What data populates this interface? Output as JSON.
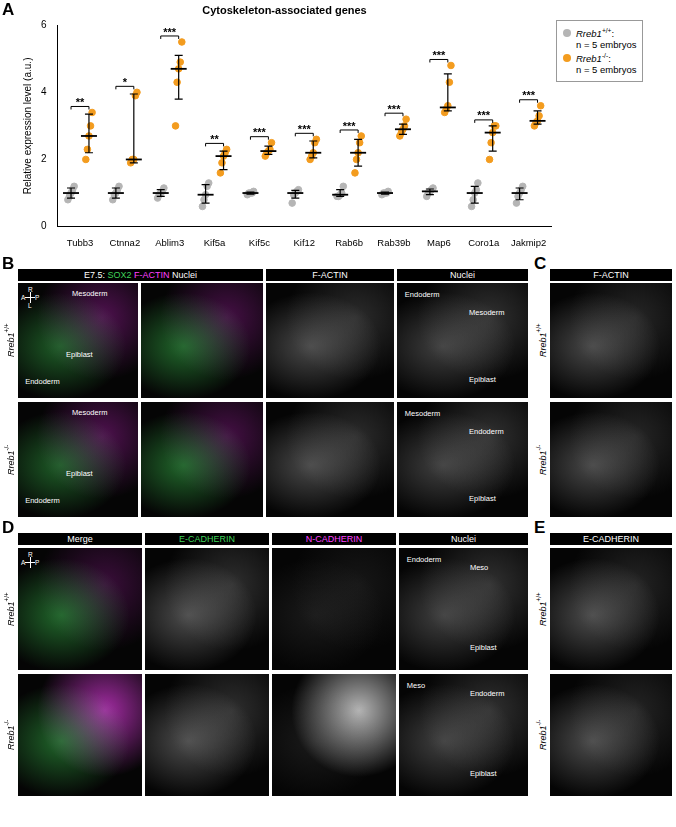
{
  "chart_data": {
    "type": "scatter",
    "title": "Cytoskeleton-associated genes",
    "y_label": "Relative expression level (a.u.)",
    "categories": [
      "Tubb3",
      "Ctnna2",
      "Ablim3",
      "Kif5a",
      "Kif5c",
      "Kif12",
      "Rab6b",
      "Rab39b",
      "Map6",
      "Coro1a",
      "Jakmip2"
    ],
    "ylim": [
      0,
      6
    ],
    "yticks": [
      0,
      2,
      4,
      6
    ],
    "grid": false,
    "legend": "top-right",
    "significance": [
      "**",
      "*",
      "***",
      "**",
      "***",
      "***",
      "***",
      "***",
      "***",
      "***",
      "***"
    ],
    "series": [
      {
        "name": "Rreb1+/+:",
        "n_label": "n = 5 embryos",
        "color": "#b5b5b5",
        "values": [
          [
            0.8,
            0.9,
            1.0,
            1.1,
            1.2
          ],
          [
            0.8,
            0.95,
            1.0,
            1.1,
            1.2
          ],
          [
            0.85,
            0.95,
            1.0,
            1.05,
            1.15
          ],
          [
            0.6,
            0.8,
            0.95,
            1.2,
            1.3
          ],
          [
            0.95,
            1.0,
            1.0,
            1.0,
            1.05
          ],
          [
            0.7,
            0.95,
            1.0,
            1.05,
            1.1
          ],
          [
            0.9,
            0.9,
            0.95,
            1.0,
            1.2
          ],
          [
            0.95,
            1.0,
            1.0,
            1.0,
            1.05
          ],
          [
            0.9,
            1.0,
            1.05,
            1.1,
            1.15
          ],
          [
            0.6,
            0.8,
            1.0,
            1.1,
            1.3
          ],
          [
            0.7,
            0.9,
            1.0,
            1.1,
            1.2
          ]
        ],
        "error_bars": [
          {
            "center": 1.0,
            "low": 0.85,
            "high": 1.15
          },
          {
            "center": 1.0,
            "low": 0.85,
            "high": 1.15
          },
          {
            "center": 1.0,
            "low": 0.9,
            "high": 1.1
          },
          {
            "center": 0.95,
            "low": 0.7,
            "high": 1.25
          },
          {
            "center": 1.0,
            "low": 0.97,
            "high": 1.03
          },
          {
            "center": 1.0,
            "low": 0.85,
            "high": 1.08
          },
          {
            "center": 0.95,
            "low": 0.9,
            "high": 1.1
          },
          {
            "center": 1.0,
            "low": 0.97,
            "high": 1.03
          },
          {
            "center": 1.05,
            "low": 0.95,
            "high": 1.12
          },
          {
            "center": 1.0,
            "low": 0.7,
            "high": 1.2
          },
          {
            "center": 1.0,
            "low": 0.8,
            "high": 1.15
          }
        ]
      },
      {
        "name": "Rreb1-/-:",
        "n_label": "n = 5 embryos",
        "color": "#f39c1f",
        "values": [
          [
            2.0,
            2.3,
            2.7,
            3.0,
            3.4
          ],
          [
            1.9,
            2.0,
            2.0,
            3.9,
            4.0
          ],
          [
            3.0,
            4.3,
            4.7,
            4.9,
            5.5
          ],
          [
            1.6,
            1.9,
            2.1,
            2.2,
            2.3
          ],
          [
            2.1,
            2.2,
            2.25,
            2.3,
            2.5
          ],
          [
            2.0,
            2.1,
            2.2,
            2.5,
            2.6
          ],
          [
            1.6,
            2.0,
            2.2,
            2.5,
            2.7
          ],
          [
            2.7,
            2.8,
            2.9,
            3.0,
            3.2
          ],
          [
            3.4,
            3.5,
            3.6,
            4.3,
            4.8
          ],
          [
            2.0,
            2.5,
            2.8,
            3.0,
            3.0
          ],
          [
            3.0,
            3.1,
            3.15,
            3.3,
            3.6
          ]
        ],
        "error_bars": [
          {
            "center": 2.7,
            "low": 2.2,
            "high": 3.35
          },
          {
            "center": 2.0,
            "low": 1.9,
            "high": 3.95
          },
          {
            "center": 4.7,
            "low": 3.8,
            "high": 5.1
          },
          {
            "center": 2.1,
            "low": 1.7,
            "high": 2.25
          },
          {
            "center": 2.25,
            "low": 2.15,
            "high": 2.4
          },
          {
            "center": 2.2,
            "low": 2.05,
            "high": 2.55
          },
          {
            "center": 2.2,
            "low": 1.8,
            "high": 2.6
          },
          {
            "center": 2.9,
            "low": 2.75,
            "high": 3.05
          },
          {
            "center": 3.55,
            "low": 3.45,
            "high": 4.55
          },
          {
            "center": 2.8,
            "low": 2.25,
            "high": 3.0
          },
          {
            "center": 3.15,
            "low": 3.05,
            "high": 3.45
          }
        ]
      }
    ]
  },
  "panel_letters": [
    "A",
    "B",
    "C",
    "D",
    "E"
  ],
  "panel_B": {
    "header": [
      {
        "text": "E7.5:",
        "color": "#ffffff"
      },
      {
        "text": "SOX2",
        "color": "#3fd35a"
      },
      {
        "text": "F-ACTIN",
        "color": "#ff40ff"
      },
      {
        "text": "Nuclei",
        "color": "#ffffff"
      }
    ],
    "compass": [
      "R",
      "A",
      "P",
      "L"
    ],
    "columns": [
      "F-ACTIN",
      "Nuclei"
    ],
    "rows": [
      {
        "label": "Rreb1+/+",
        "overview": [
          "Mesoderm",
          "Endoderm",
          "Epiblast"
        ],
        "nuclei": [
          "Endoderm",
          "Mesoderm",
          "Epiblast"
        ]
      },
      {
        "label": "Rreb1-/-",
        "overview": [
          "Mesoderm",
          "Endoderm",
          "Epiblast"
        ],
        "nuclei": [
          "Mesoderm",
          "Endoderm",
          "Epiblast"
        ]
      }
    ]
  },
  "panel_C": {
    "header": "F-ACTIN",
    "rows": [
      "Rreb1+/+",
      "Rreb1-/-"
    ]
  },
  "panel_D": {
    "compass": [
      "R",
      "A",
      "P"
    ],
    "columns": [
      {
        "text": "Merge",
        "color": "#ffffff"
      },
      {
        "text": "E-CADHERIN",
        "color": "#3fd35a"
      },
      {
        "text": "N-CADHERIN",
        "color": "#ff40ff"
      },
      {
        "text": "Nuclei",
        "color": "#ffffff"
      }
    ],
    "rows": [
      {
        "label": "Rreb1+/+",
        "nuclei": [
          "Endoderm",
          "Meso",
          "Epiblast"
        ]
      },
      {
        "label": "Rreb1-/-",
        "nuclei": [
          "Meso",
          "Endoderm",
          "Epiblast"
        ]
      }
    ]
  },
  "panel_E": {
    "header": "E-CADHERIN",
    "rows": [
      "Rreb1+/+",
      "Rreb1-/-"
    ]
  }
}
